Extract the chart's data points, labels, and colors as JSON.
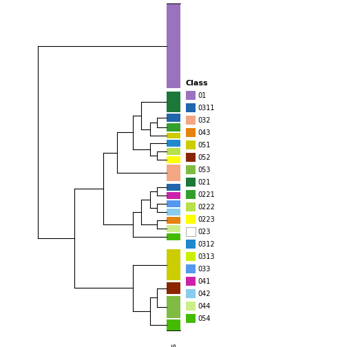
{
  "bar_segments": [
    [
      5,
      128,
      "#9B72BE"
    ],
    [
      133,
      163,
      "#1B7837"
    ],
    [
      165,
      177,
      "#2166AC"
    ],
    [
      179,
      191,
      "#33A02C"
    ],
    [
      193,
      201,
      "#CCCC00"
    ],
    [
      203,
      213,
      "#2088CC"
    ],
    [
      215,
      225,
      "#B8E04A"
    ],
    [
      227,
      237,
      "#FFFF00"
    ],
    [
      239,
      263,
      "#F4A582"
    ],
    [
      267,
      277,
      "#2166AC"
    ],
    [
      279,
      289,
      "#CC22AA"
    ],
    [
      291,
      301,
      "#5599EE"
    ],
    [
      303,
      313,
      "#88CCEE"
    ],
    [
      315,
      325,
      "#E6820E"
    ],
    [
      327,
      337,
      "#CCEE88"
    ],
    [
      339,
      349,
      "#44BB00"
    ],
    [
      362,
      407,
      "#CCCC00"
    ],
    [
      410,
      427,
      "#8B2500"
    ],
    [
      430,
      462,
      "#7FBC41"
    ],
    [
      464,
      480,
      "#44BB00"
    ]
  ],
  "legend_entries": [
    [
      "01",
      "#9B72BE"
    ],
    [
      "0311",
      "#2166AC"
    ],
    [
      "032",
      "#F4A582"
    ],
    [
      "043",
      "#E6820E"
    ],
    [
      "051",
      "#CCCC00"
    ],
    [
      "052",
      "#8B2500"
    ],
    [
      "053",
      "#7FBC41"
    ],
    [
      "021",
      "#1B7837"
    ],
    [
      "0221",
      "#33A02C"
    ],
    [
      "0222",
      "#B8E04A"
    ],
    [
      "0223",
      "#FFFF00"
    ],
    [
      "023",
      "#FFFFFF"
    ],
    [
      "0312",
      "#2088CC"
    ],
    [
      "0313",
      "#CCEE00"
    ],
    [
      "033",
      "#5599EE"
    ],
    [
      "041",
      "#CC22AA"
    ],
    [
      "042",
      "#88CCEE"
    ],
    [
      "044",
      "#CCEE88"
    ],
    [
      "054",
      "#44BB00"
    ]
  ],
  "fig_width": 5.04,
  "fig_height": 5.04,
  "dpi": 100
}
